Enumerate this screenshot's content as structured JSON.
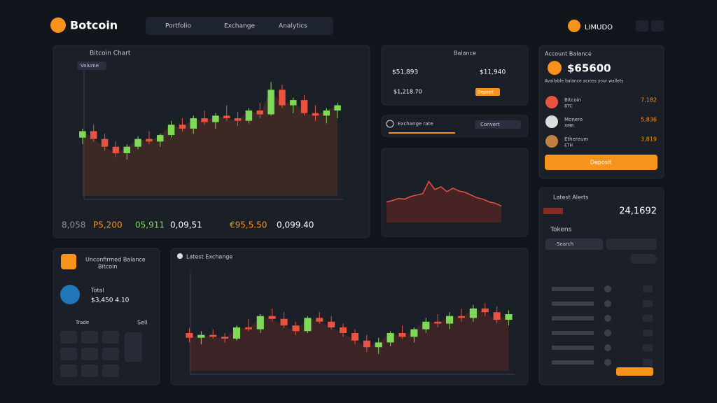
{
  "header": {
    "brand": "Botcoin",
    "nav": [
      "Portfolio",
      "Exchange",
      "Analytics"
    ],
    "user": "LIMUDO"
  },
  "main_chart": {
    "title": "Bitcoin Chart",
    "tag": "Volume",
    "ylim": [
      0,
      100
    ],
    "candles": [
      [
        45,
        52,
        40,
        50
      ],
      [
        50,
        55,
        42,
        44
      ],
      [
        44,
        48,
        35,
        38
      ],
      [
        38,
        42,
        30,
        33
      ],
      [
        33,
        40,
        28,
        38
      ],
      [
        38,
        46,
        36,
        44
      ],
      [
        44,
        50,
        40,
        42
      ],
      [
        42,
        48,
        38,
        47
      ],
      [
        47,
        58,
        45,
        55
      ],
      [
        55,
        60,
        50,
        52
      ],
      [
        52,
        62,
        48,
        60
      ],
      [
        60,
        66,
        55,
        57
      ],
      [
        57,
        64,
        52,
        62
      ],
      [
        62,
        70,
        58,
        60
      ],
      [
        60,
        65,
        54,
        58
      ],
      [
        58,
        68,
        56,
        66
      ],
      [
        66,
        72,
        60,
        63
      ],
      [
        63,
        88,
        62,
        82
      ],
      [
        82,
        86,
        68,
        70
      ],
      [
        70,
        76,
        64,
        74
      ],
      [
        74,
        78,
        62,
        64
      ],
      [
        64,
        70,
        58,
        62
      ],
      [
        62,
        68,
        56,
        66
      ],
      [
        66,
        72,
        60,
        70
      ]
    ],
    "stats": [
      "8,058",
      "P5,200",
      "05,911",
      "0,09,51",
      "€95,5.50",
      "0,099.40"
    ]
  },
  "balance": {
    "title": "Balance",
    "left": "$51,893",
    "left2": "$1,218.70",
    "right": "$11,940",
    "button": "Deposit"
  },
  "exchange": {
    "label": "Exchange rate",
    "button": "Convert"
  },
  "line_chart": {
    "ylim": [
      0,
      100
    ],
    "values": [
      30,
      32,
      35,
      34,
      38,
      40,
      42,
      60,
      48,
      52,
      45,
      50,
      46,
      44,
      40,
      36,
      34,
      30,
      28,
      24
    ]
  },
  "account": {
    "title": "Account Balance",
    "balance": "$65600",
    "sub": "Available balance across your wallets",
    "rows": [
      {
        "name": "Bitcoin",
        "sub": "BTC",
        "value": "7,182"
      },
      {
        "name": "Monero",
        "sub": "XMR",
        "value": "5,836"
      },
      {
        "name": "Ethereum",
        "sub": "ETH",
        "value": "3,819"
      }
    ],
    "button": "Deposit"
  },
  "alerts": {
    "title": "Latest Alerts",
    "value": "24,1692",
    "label": "Tokens",
    "input": "Search"
  },
  "unconfirmed": {
    "title": "Unconfirmed Balance",
    "subtitle": "Bitcoin",
    "name": "Total",
    "amount": "$3,450 4.10",
    "tag": "Trade",
    "sell": "Sell"
  },
  "bottom_chart": {
    "title": "Latest Exchange",
    "ylim": [
      0,
      100
    ],
    "candles": [
      [
        40,
        45,
        30,
        35
      ],
      [
        35,
        42,
        28,
        38
      ],
      [
        38,
        44,
        34,
        36
      ],
      [
        36,
        40,
        30,
        34
      ],
      [
        34,
        48,
        32,
        46
      ],
      [
        46,
        55,
        42,
        44
      ],
      [
        44,
        60,
        40,
        58
      ],
      [
        58,
        66,
        52,
        55
      ],
      [
        55,
        62,
        45,
        48
      ],
      [
        48,
        52,
        38,
        42
      ],
      [
        42,
        58,
        40,
        56
      ],
      [
        56,
        62,
        50,
        52
      ],
      [
        52,
        58,
        44,
        46
      ],
      [
        46,
        50,
        36,
        40
      ],
      [
        40,
        44,
        28,
        32
      ],
      [
        32,
        38,
        20,
        25
      ],
      [
        25,
        35,
        18,
        30
      ],
      [
        30,
        42,
        26,
        40
      ],
      [
        40,
        48,
        34,
        36
      ],
      [
        36,
        46,
        30,
        44
      ],
      [
        44,
        56,
        40,
        52
      ],
      [
        52,
        60,
        46,
        50
      ],
      [
        50,
        62,
        44,
        58
      ],
      [
        58,
        66,
        52,
        56
      ],
      [
        56,
        70,
        52,
        66
      ],
      [
        66,
        72,
        58,
        62
      ],
      [
        62,
        68,
        50,
        54
      ],
      [
        54,
        64,
        48,
        60
      ]
    ]
  }
}
